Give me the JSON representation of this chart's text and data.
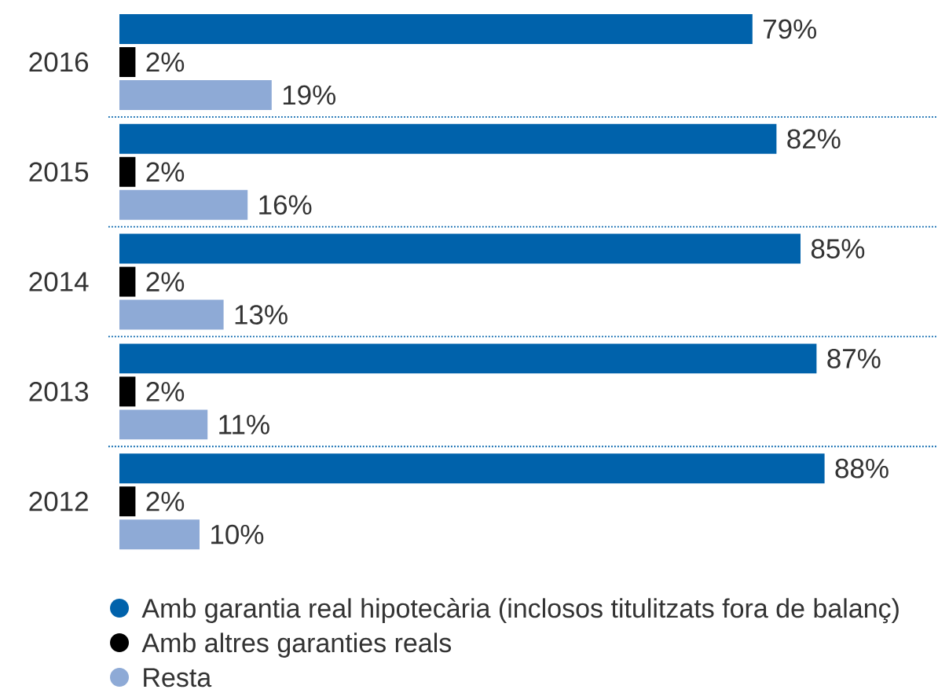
{
  "chart_data": {
    "type": "bar",
    "orientation": "horizontal",
    "categories": [
      "2016",
      "2015",
      "2014",
      "2013",
      "2012"
    ],
    "series": [
      {
        "name": "Amb garantia real hipotecària (inclosos titulitzats fora de balanç)",
        "color": "#0062ab",
        "values": [
          79,
          82,
          85,
          87,
          88
        ],
        "value_labels": [
          "79%",
          "82%",
          "85%",
          "87%",
          "88%"
        ]
      },
      {
        "name": "Amb altres garanties reals",
        "color": "#000000",
        "values": [
          2,
          2,
          2,
          2,
          2
        ],
        "value_labels": [
          "2%",
          "2%",
          "2%",
          "2%",
          "2%"
        ]
      },
      {
        "name": "Resta",
        "color": "#8eaad6",
        "values": [
          19,
          16,
          13,
          11,
          10
        ],
        "value_labels": [
          "19%",
          "16%",
          "13%",
          "11%",
          "10%"
        ]
      }
    ],
    "grid": "y",
    "legend": "bottom"
  }
}
